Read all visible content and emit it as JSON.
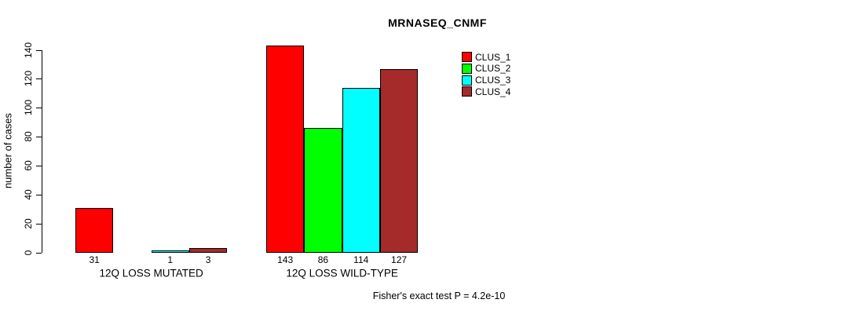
{
  "chart_data": {
    "type": "bar",
    "title": "MRNASEQ_CNMF",
    "xlabel": "",
    "ylabel": "number of cases",
    "ylim": [
      0,
      140
    ],
    "yticks": [
      0,
      20,
      40,
      60,
      80,
      100,
      120,
      140
    ],
    "grid": false,
    "legend_position": "top-right",
    "categories": [
      "12Q LOSS MUTATED",
      "12Q LOSS WILD-TYPE"
    ],
    "series": [
      {
        "name": "CLUS_1",
        "color": "#FF0000",
        "values": [
          31,
          143
        ]
      },
      {
        "name": "CLUS_2",
        "color": "#00FF00",
        "values": [
          0,
          86
        ]
      },
      {
        "name": "CLUS_3",
        "color": "#00FFFF",
        "values": [
          1,
          114
        ]
      },
      {
        "name": "CLUS_4",
        "color": "#A52A2A",
        "values": [
          3,
          127
        ]
      }
    ],
    "bar_labels": [
      [
        "31",
        "",
        "1",
        "3"
      ],
      [
        "143",
        "86",
        "114",
        "127"
      ]
    ],
    "footnote": "Fisher's exact test P = 4.2e-10",
    "axis_color": "#000000",
    "text_color": "#000000",
    "background_color": "#FFFFFF"
  }
}
